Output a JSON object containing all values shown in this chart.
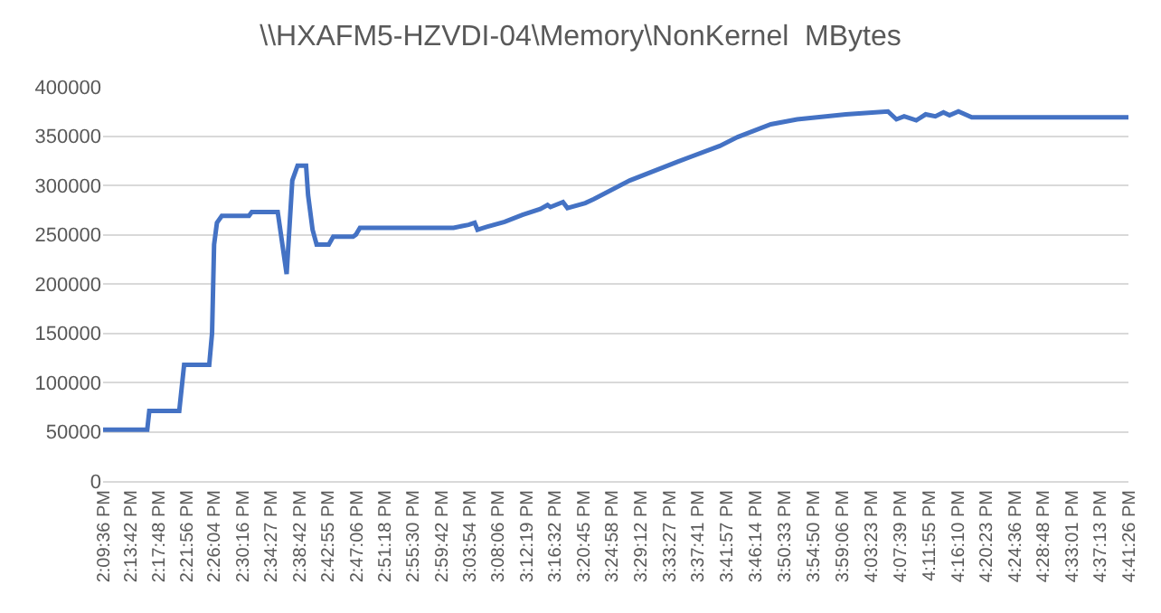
{
  "chart_data": {
    "type": "line",
    "title": "\\\\HXAFM5-HZVDI-04\\Memory\\NonKernel  MBytes",
    "x": [
      14.16,
      14.269,
      14.274,
      14.348,
      14.36,
      14.422,
      14.429,
      14.434,
      14.441,
      14.453,
      14.52,
      14.527,
      14.591,
      14.613,
      14.627,
      14.64,
      14.661,
      14.666,
      14.677,
      14.687,
      14.717,
      14.728,
      14.777,
      14.784,
      14.794,
      15.025,
      15.062,
      15.077,
      15.084,
      15.107,
      15.151,
      15.195,
      15.239,
      15.257,
      15.264,
      15.295,
      15.306,
      15.35,
      15.371,
      15.46,
      15.578,
      15.682,
      15.726,
      15.808,
      15.873,
      15.993,
      16.097,
      16.118,
      16.137,
      16.167,
      16.19,
      16.214,
      16.234,
      16.249,
      16.271,
      16.304,
      16.6906
    ],
    "series": [
      {
        "color": "#4472c4",
        "values": [
          52000,
          52000,
          71000,
          71000,
          118000,
          118000,
          150000,
          240000,
          262000,
          269000,
          269000,
          273000,
          273000,
          210000,
          305000,
          320000,
          320000,
          290000,
          255000,
          240000,
          240000,
          248000,
          248000,
          250000,
          257000,
          257000,
          260000,
          262000,
          255000,
          258000,
          263000,
          270000,
          276000,
          280000,
          278000,
          283000,
          277000,
          282000,
          286000,
          305000,
          324000,
          340000,
          349000,
          362000,
          367000,
          372000,
          375000,
          367000,
          370000,
          366000,
          372000,
          370000,
          374000,
          371000,
          375000,
          369000,
          369000
        ]
      }
    ],
    "xlim": [
      14.16,
      16.6906
    ],
    "xticks": [
      {
        "value": 14.16,
        "label": "2:09:36 PM"
      },
      {
        "value": 14.2283,
        "label": "2:13:42 PM"
      },
      {
        "value": 14.2967,
        "label": "2:17:48 PM"
      },
      {
        "value": 14.3656,
        "label": "2:21:56 PM"
      },
      {
        "value": 14.4344,
        "label": "2:26:04 PM"
      },
      {
        "value": 14.5044,
        "label": "2:30:16 PM"
      },
      {
        "value": 14.5742,
        "label": "2:34:27 PM"
      },
      {
        "value": 14.645,
        "label": "2:38:42 PM"
      },
      {
        "value": 14.7153,
        "label": "2:42:55 PM"
      },
      {
        "value": 14.785,
        "label": "2:47:06 PM"
      },
      {
        "value": 14.855,
        "label": "2:51:18 PM"
      },
      {
        "value": 14.925,
        "label": "2:55:30 PM"
      },
      {
        "value": 14.995,
        "label": "2:59:42 PM"
      },
      {
        "value": 15.065,
        "label": "3:03:54 PM"
      },
      {
        "value": 15.135,
        "label": "3:08:06 PM"
      },
      {
        "value": 15.2053,
        "label": "3:12:19 PM"
      },
      {
        "value": 15.2756,
        "label": "3:16:32 PM"
      },
      {
        "value": 15.3458,
        "label": "3:20:45 PM"
      },
      {
        "value": 15.4161,
        "label": "3:24:58 PM"
      },
      {
        "value": 15.4867,
        "label": "3:29:12 PM"
      },
      {
        "value": 15.5575,
        "label": "3:33:27 PM"
      },
      {
        "value": 15.6281,
        "label": "3:37:41 PM"
      },
      {
        "value": 15.6992,
        "label": "3:41:57 PM"
      },
      {
        "value": 15.7706,
        "label": "3:46:14 PM"
      },
      {
        "value": 15.8425,
        "label": "3:50:33 PM"
      },
      {
        "value": 15.9139,
        "label": "3:54:50 PM"
      },
      {
        "value": 15.985,
        "label": "3:59:06 PM"
      },
      {
        "value": 16.0564,
        "label": "4:03:23 PM"
      },
      {
        "value": 16.1275,
        "label": "4:07:39 PM"
      },
      {
        "value": 16.1986,
        "label": "4:11:55 PM"
      },
      {
        "value": 16.2694,
        "label": "4:16:10 PM"
      },
      {
        "value": 16.3397,
        "label": "4:20:23 PM"
      },
      {
        "value": 16.41,
        "label": "4:24:36 PM"
      },
      {
        "value": 16.48,
        "label": "4:28:48 PM"
      },
      {
        "value": 16.5503,
        "label": "4:33:01 PM"
      },
      {
        "value": 16.6203,
        "label": "4:37:13 PM"
      },
      {
        "value": 16.6906,
        "label": "4:41:26 PM"
      }
    ],
    "ylim": [
      0,
      400000
    ],
    "yticks": [
      0,
      50000,
      100000,
      150000,
      200000,
      250000,
      300000,
      350000,
      400000
    ],
    "grid": "y",
    "marker": "none",
    "line_style": "solid"
  }
}
